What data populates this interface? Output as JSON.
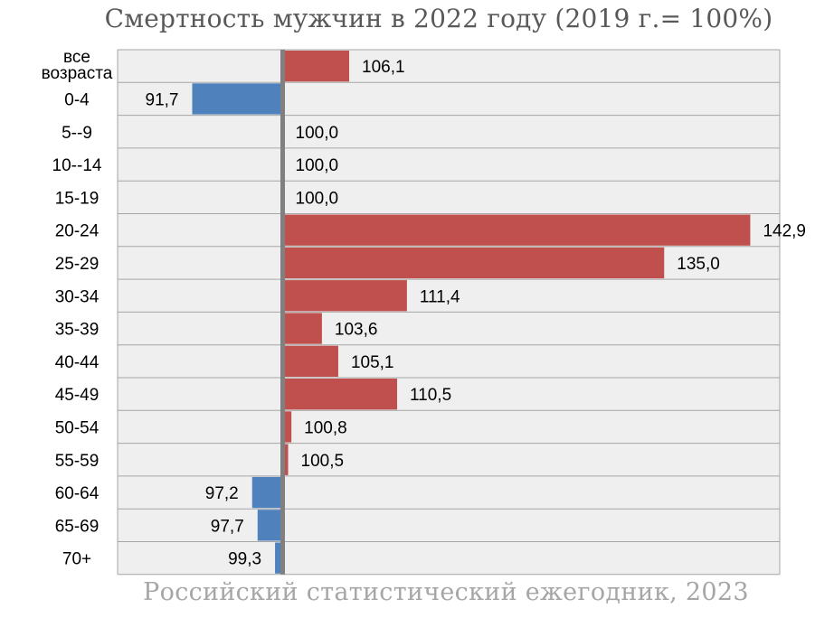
{
  "chart_data": {
    "type": "bar",
    "orientation": "horizontal",
    "title": "Смертность мужчин в 2022 году (2019 г.= 100%)",
    "source": "Российский статистический ежегодник, 2023",
    "baseline": 100,
    "categories": [
      "все возраста",
      "0-4",
      "5--9",
      "10--14",
      "15-19",
      "20-24",
      "25-29",
      "30-34",
      "35-39",
      "40-44",
      "45-49",
      "50-54",
      "55-59",
      "60-64",
      "65-69",
      "70+"
    ],
    "values": [
      106.1,
      91.7,
      100.0,
      100.0,
      100.0,
      142.9,
      135.0,
      111.4,
      103.6,
      105.1,
      110.5,
      100.8,
      100.5,
      97.2,
      97.7,
      99.3
    ],
    "value_labels": [
      "106,1",
      "91,7",
      "100,0",
      "100,0",
      "100,0",
      "142,9",
      "135,0",
      "111,4",
      "103,6",
      "105,1",
      "110,5",
      "100,8",
      "100,5",
      "97,2",
      "97,7",
      "99,3"
    ],
    "colors": {
      "above_baseline": "#c0504d",
      "below_baseline": "#4f81bd",
      "axis": "#808080",
      "row_background": "#efefef",
      "gridline": "#a6a6a6"
    },
    "grid": true,
    "legend": "none"
  }
}
